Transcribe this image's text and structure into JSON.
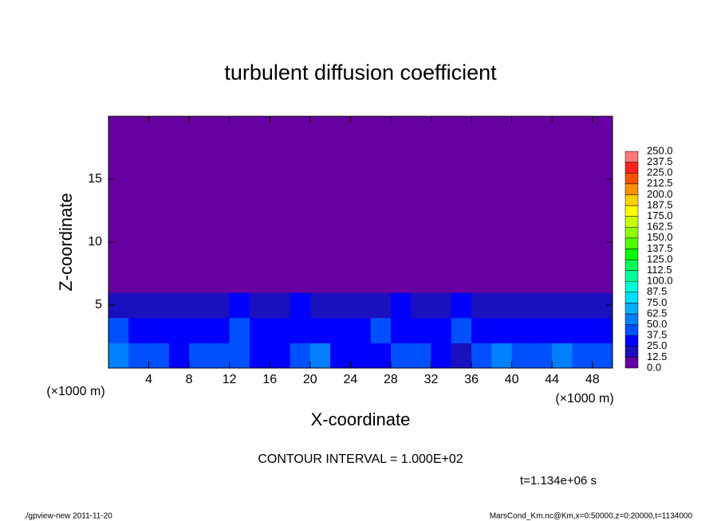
{
  "chart_data": {
    "type": "heatmap",
    "title": "turbulent diffusion coefficient",
    "x_label": "X-coordinate",
    "y_label": "Z-coordinate",
    "x_unit_label": "(×1000 m)",
    "y_unit_label": "(×1000 m)",
    "xlim": [
      0,
      50
    ],
    "ylim": [
      0,
      20
    ],
    "xticks": [
      4,
      8,
      12,
      16,
      20,
      24,
      28,
      32,
      36,
      40,
      44,
      48
    ],
    "yticks": [
      5,
      10,
      15
    ],
    "x": [
      1,
      3,
      5,
      7,
      9,
      11,
      13,
      15,
      17,
      19,
      21,
      23,
      25,
      27,
      29,
      31,
      33,
      35,
      37,
      39,
      41,
      43,
      45,
      47,
      49
    ],
    "y": [
      1,
      3,
      5,
      7,
      9,
      11,
      13,
      15,
      17,
      19
    ],
    "values": [
      [
        50,
        45,
        40,
        35,
        40,
        45,
        40,
        35,
        30,
        40,
        50,
        35,
        30,
        25,
        45,
        40,
        25,
        15,
        40,
        50,
        45,
        40,
        50,
        45,
        40
      ],
      [
        40,
        35,
        30,
        30,
        35,
        35,
        40,
        30,
        35,
        30,
        25,
        30,
        35,
        40,
        35,
        30,
        30,
        40,
        35,
        30,
        30,
        35,
        30,
        25,
        30
      ],
      [
        20,
        15,
        15,
        20,
        20,
        15,
        25,
        15,
        20,
        25,
        15,
        20,
        20,
        15,
        25,
        15,
        20,
        25,
        20,
        15,
        15,
        15,
        20,
        15,
        20
      ],
      [
        0,
        0,
        0,
        0,
        0,
        0,
        0,
        0,
        0,
        5,
        0,
        0,
        0,
        0,
        0,
        5,
        0,
        0,
        0,
        5,
        0,
        0,
        0,
        0,
        0
      ],
      [
        0,
        0,
        0,
        0,
        0,
        0,
        0,
        0,
        0,
        0,
        0,
        0,
        0,
        0,
        0,
        0,
        0,
        0,
        0,
        0,
        0,
        0,
        0,
        0,
        0
      ],
      [
        0,
        0,
        0,
        0,
        0,
        0,
        0,
        0,
        0,
        0,
        0,
        0,
        0,
        0,
        0,
        0,
        0,
        0,
        0,
        0,
        0,
        0,
        0,
        0,
        0
      ],
      [
        0,
        0,
        0,
        0,
        0,
        0,
        0,
        0,
        0,
        0,
        0,
        0,
        0,
        0,
        0,
        0,
        0,
        0,
        0,
        0,
        0,
        0,
        0,
        0,
        0
      ],
      [
        0,
        0,
        0,
        0,
        0,
        0,
        0,
        0,
        0,
        0,
        0,
        0,
        0,
        0,
        0,
        0,
        0,
        0,
        0,
        0,
        0,
        0,
        0,
        0,
        0
      ],
      [
        0,
        0,
        0,
        0,
        0,
        0,
        0,
        0,
        0,
        0,
        0,
        0,
        0,
        0,
        0,
        0,
        0,
        0,
        0,
        0,
        0,
        0,
        0,
        0,
        0
      ],
      [
        0,
        0,
        0,
        0,
        0,
        0,
        0,
        0,
        0,
        0,
        0,
        0,
        0,
        0,
        0,
        0,
        0,
        0,
        0,
        0,
        0,
        0,
        0,
        0,
        0
      ]
    ],
    "colorbar": {
      "levels": [
        {
          "value": 0,
          "label": "0.0"
        },
        12.5,
        {
          "value": 25,
          "label": "25.0"
        },
        37.5,
        {
          "value": 50,
          "label": "50.0"
        },
        62.5,
        {
          "value": 75,
          "label": "75.0"
        },
        87.5,
        {
          "value": 100,
          "label": "100.0"
        },
        112.5,
        {
          "value": 125,
          "label": "125.0"
        },
        137.5,
        {
          "value": 150,
          "label": "150.0"
        },
        162.5,
        {
          "value": 175,
          "label": "175.0"
        },
        187.5,
        {
          "value": 200,
          "label": "200.0"
        },
        212.5,
        {
          "value": 225,
          "label": "225.0"
        },
        237.5,
        {
          "value": 250,
          "label": "250.0"
        }
      ],
      "colors": [
        "#6600a0",
        "#1a10c0",
        "#0000ff",
        "#0050ff",
        "#0080ff",
        "#00b0ff",
        "#00e0ff",
        "#00ffd8",
        "#00ff98",
        "#00ff58",
        "#00ff00",
        "#50ff00",
        "#90ff00",
        "#c8ff00",
        "#ffff00",
        "#ffd000",
        "#ff9000",
        "#ff5000",
        "#ff2020",
        "#ff7878"
      ]
    },
    "annotations": [
      "CONTOUR INTERVAL = 1.000E+02",
      "t=1.134e+06 s"
    ]
  },
  "footer": {
    "left": "./gpview-new   2011-11-20",
    "right": "MarsCond_Km.nc@Km,x=0:50000,z=0:20000,t=1134000"
  }
}
